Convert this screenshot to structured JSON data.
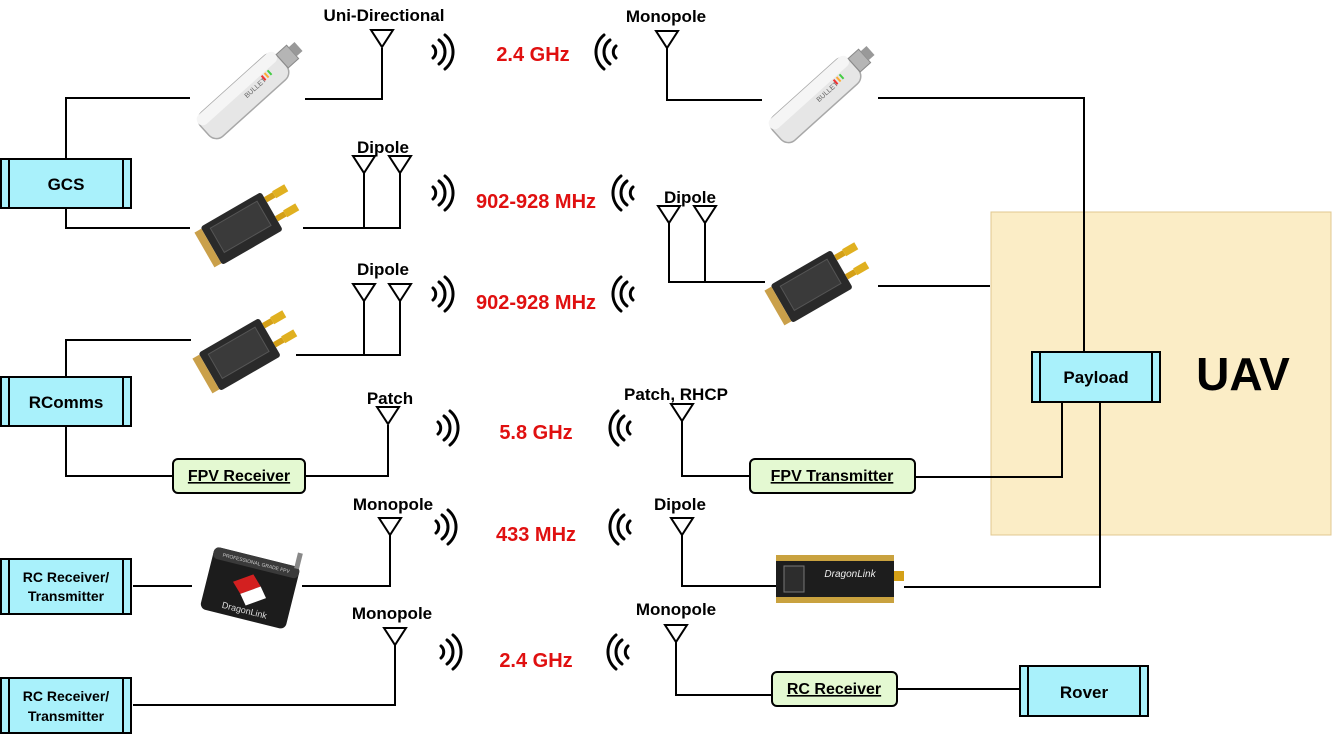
{
  "frequencies": {
    "f1": "2.4 GHz",
    "f2": "902-928 MHz",
    "f3": "902-928 MHz",
    "f4": "5.8 GHz",
    "f5": "433 MHz",
    "f6": "2.4 GHz"
  },
  "antennas": {
    "uni_directional": "Uni-Directional",
    "monopole_top": "Monopole",
    "dipole_gcs": "Dipole",
    "dipole_uav": "Dipole",
    "dipole_rcomms": "Dipole",
    "patch": "Patch",
    "patch_rhcp": "Patch, RHCP",
    "monopole_rc1": "Monopole",
    "dipole_uav_rc": "Dipole",
    "monopole_rc2": "Monopole",
    "monopole_rover": "Monopole"
  },
  "nodes": {
    "gcs": "GCS",
    "rcomms": "RComms",
    "rc_tx1_line1": "RC Receiver/",
    "rc_tx1_line2": "Transmitter",
    "rc_tx2_line1": "RC Receiver/",
    "rc_tx2_line2": "Transmitter",
    "payload": "Payload",
    "rover": "Rover"
  },
  "modules": {
    "fpv_receiver": "FPV Receiver",
    "fpv_transmitter": "FPV Transmitter",
    "rc_receiver": "RC Receiver"
  },
  "uav": {
    "label": "UAV"
  },
  "device_text": {
    "bullet": "BULLET",
    "dragonlink": "DragonLink",
    "dragonlink_professional": "PROFESSIONAL GRADE FPV"
  },
  "colors": {
    "frequency": "#e01010",
    "node_fill": "#a9f1fb",
    "module_fill": "#e4f9d2",
    "uav_fill": "#fbedc6"
  }
}
